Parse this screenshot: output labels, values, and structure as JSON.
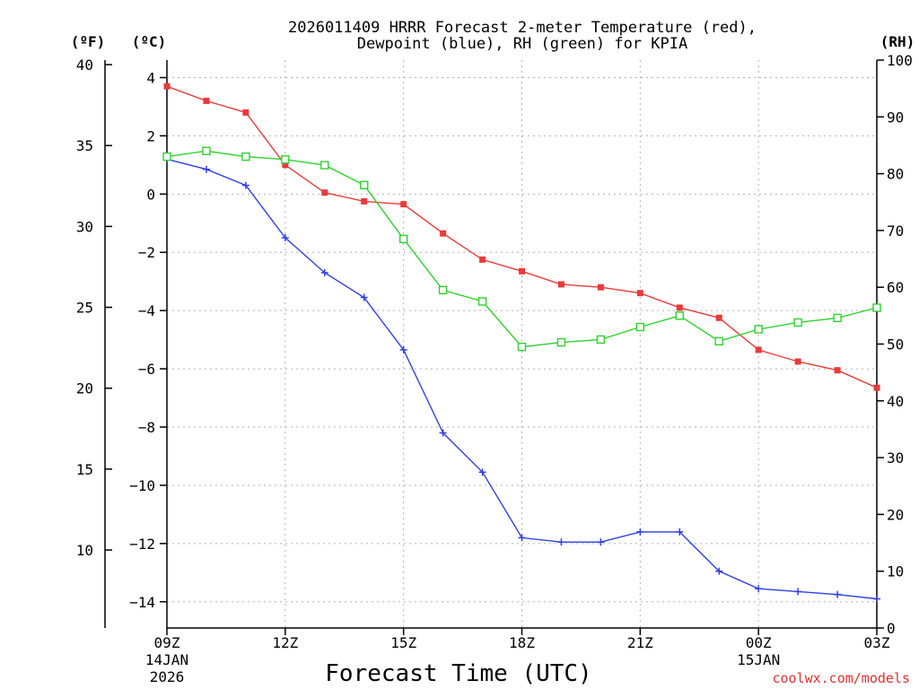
{
  "chart_data": {
    "type": "line",
    "title_line1": "2026011409 HRRR Forecast 2-meter Temperature (red),",
    "title_line2": "Dewpoint (blue), RH (green) for KPIA",
    "unit_f": "(ºF)",
    "unit_c": "(ºC)",
    "unit_rh": "(RH)",
    "xlabel": "Forecast Time (UTC)",
    "credit": "coolwx.com/models",
    "x": [
      9,
      10,
      11,
      12,
      13,
      14,
      15,
      16,
      17,
      18,
      19,
      20,
      21,
      22,
      23,
      24,
      25,
      26,
      27
    ],
    "xlim": [
      9,
      27
    ],
    "xticks": [
      {
        "x": 9,
        "label": "09Z",
        "date": "14JAN",
        "year": "2026"
      },
      {
        "x": 12,
        "label": "12Z",
        "date": "",
        "year": ""
      },
      {
        "x": 15,
        "label": "15Z",
        "date": "",
        "year": ""
      },
      {
        "x": 18,
        "label": "18Z",
        "date": "",
        "year": ""
      },
      {
        "x": 21,
        "label": "21Z",
        "date": "",
        "year": ""
      },
      {
        "x": 24,
        "label": "00Z",
        "date": "15JAN",
        "year": ""
      },
      {
        "x": 27,
        "label": "03Z",
        "date": "",
        "year": ""
      }
    ],
    "ylim_c": [
      -14.9,
      4.6
    ],
    "yticks_c": [
      4,
      2,
      0,
      -2,
      -4,
      -6,
      -8,
      -10,
      -12,
      -14
    ],
    "yticks_c_labels": [
      "4",
      "2",
      "0",
      "−2",
      "−4",
      "−6",
      "−8",
      "−10",
      "−12",
      "−14"
    ],
    "yticks_f": [
      40,
      35,
      30,
      25,
      20,
      15,
      10
    ],
    "ylim_rh": [
      0,
      100
    ],
    "yticks_rh": [
      100,
      90,
      80,
      70,
      60,
      50,
      40,
      30,
      20,
      10,
      0
    ],
    "series": [
      {
        "name": "Temperature",
        "axis": "c",
        "color": "#e83a3a",
        "marker": "filled-square",
        "values": [
          3.7,
          3.2,
          2.8,
          1.0,
          0.05,
          -0.25,
          -0.35,
          -1.35,
          -2.25,
          -2.65,
          -3.1,
          -3.2,
          -3.4,
          -3.9,
          -4.25,
          -5.35,
          -5.75,
          -6.05,
          -6.65
        ]
      },
      {
        "name": "Dewpoint",
        "axis": "c",
        "color": "#2f3fe0",
        "marker": "plus",
        "values": [
          1.2,
          0.85,
          0.3,
          -1.5,
          -2.7,
          -3.55,
          -5.35,
          -8.2,
          -9.55,
          -11.8,
          -11.95,
          -11.95,
          -11.6,
          -11.6,
          -12.95,
          -13.55,
          -13.65,
          -13.75,
          -13.9
        ]
      },
      {
        "name": "RH",
        "axis": "rh",
        "color": "#2ed12e",
        "marker": "open-square",
        "values": [
          83,
          84,
          83,
          82.5,
          81.5,
          78,
          68.5,
          59.5,
          57.5,
          49.5,
          50.3,
          50.8,
          53,
          55,
          50.5,
          52.6,
          53.8,
          54.6,
          56.4
        ]
      }
    ]
  }
}
